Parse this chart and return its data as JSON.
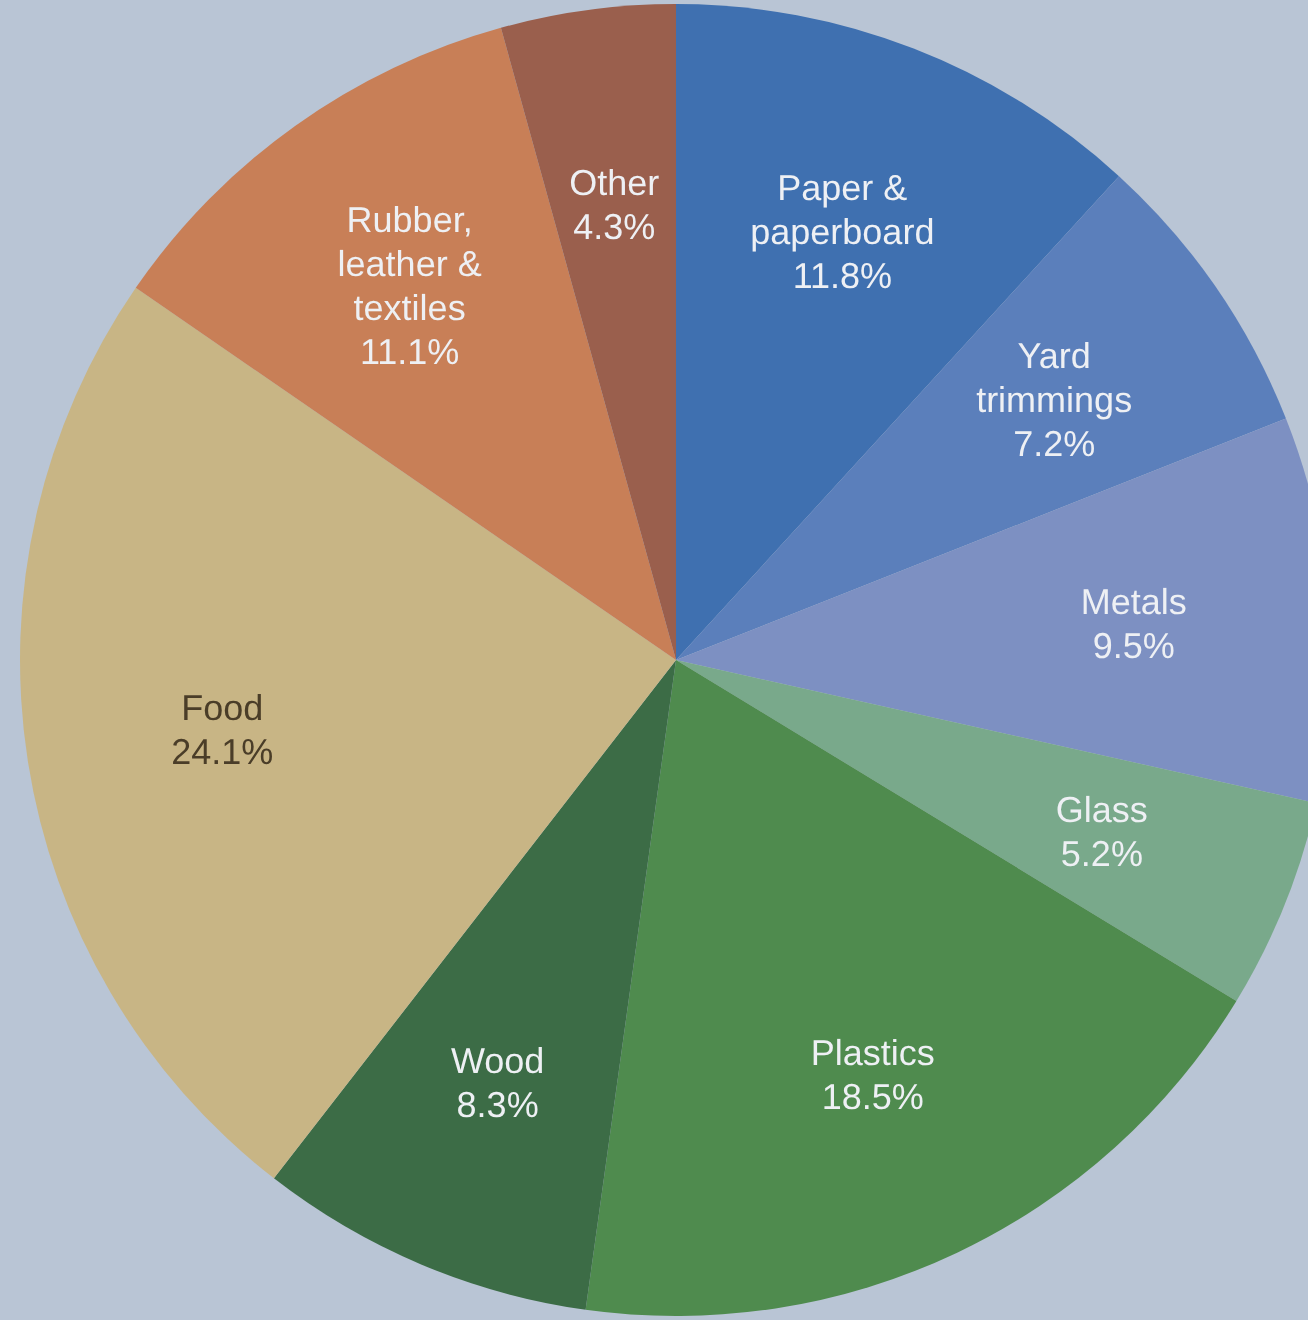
{
  "chart_data": {
    "type": "pie",
    "categories": [
      "Paper & paperboard",
      "Yard trimmings",
      "Metals",
      "Glass",
      "Plastics",
      "Wood",
      "Food",
      "Rubber, leather & textiles",
      "Other"
    ],
    "values": [
      11.8,
      7.2,
      9.5,
      5.2,
      18.5,
      8.3,
      24.1,
      11.1,
      4.3
    ],
    "colors": [
      "#3f70b0",
      "#5b7fbb",
      "#7d90c2",
      "#79a98b",
      "#4f8b4e",
      "#3c6c46",
      "#c8b585",
      "#c87f57",
      "#9a5f4d"
    ],
    "value_labels": [
      "11.8%",
      "7.2%",
      "9.5%",
      "5.2%",
      "18.5%",
      "8.3%",
      "24.1%",
      "11.1%",
      "4.3%"
    ]
  }
}
